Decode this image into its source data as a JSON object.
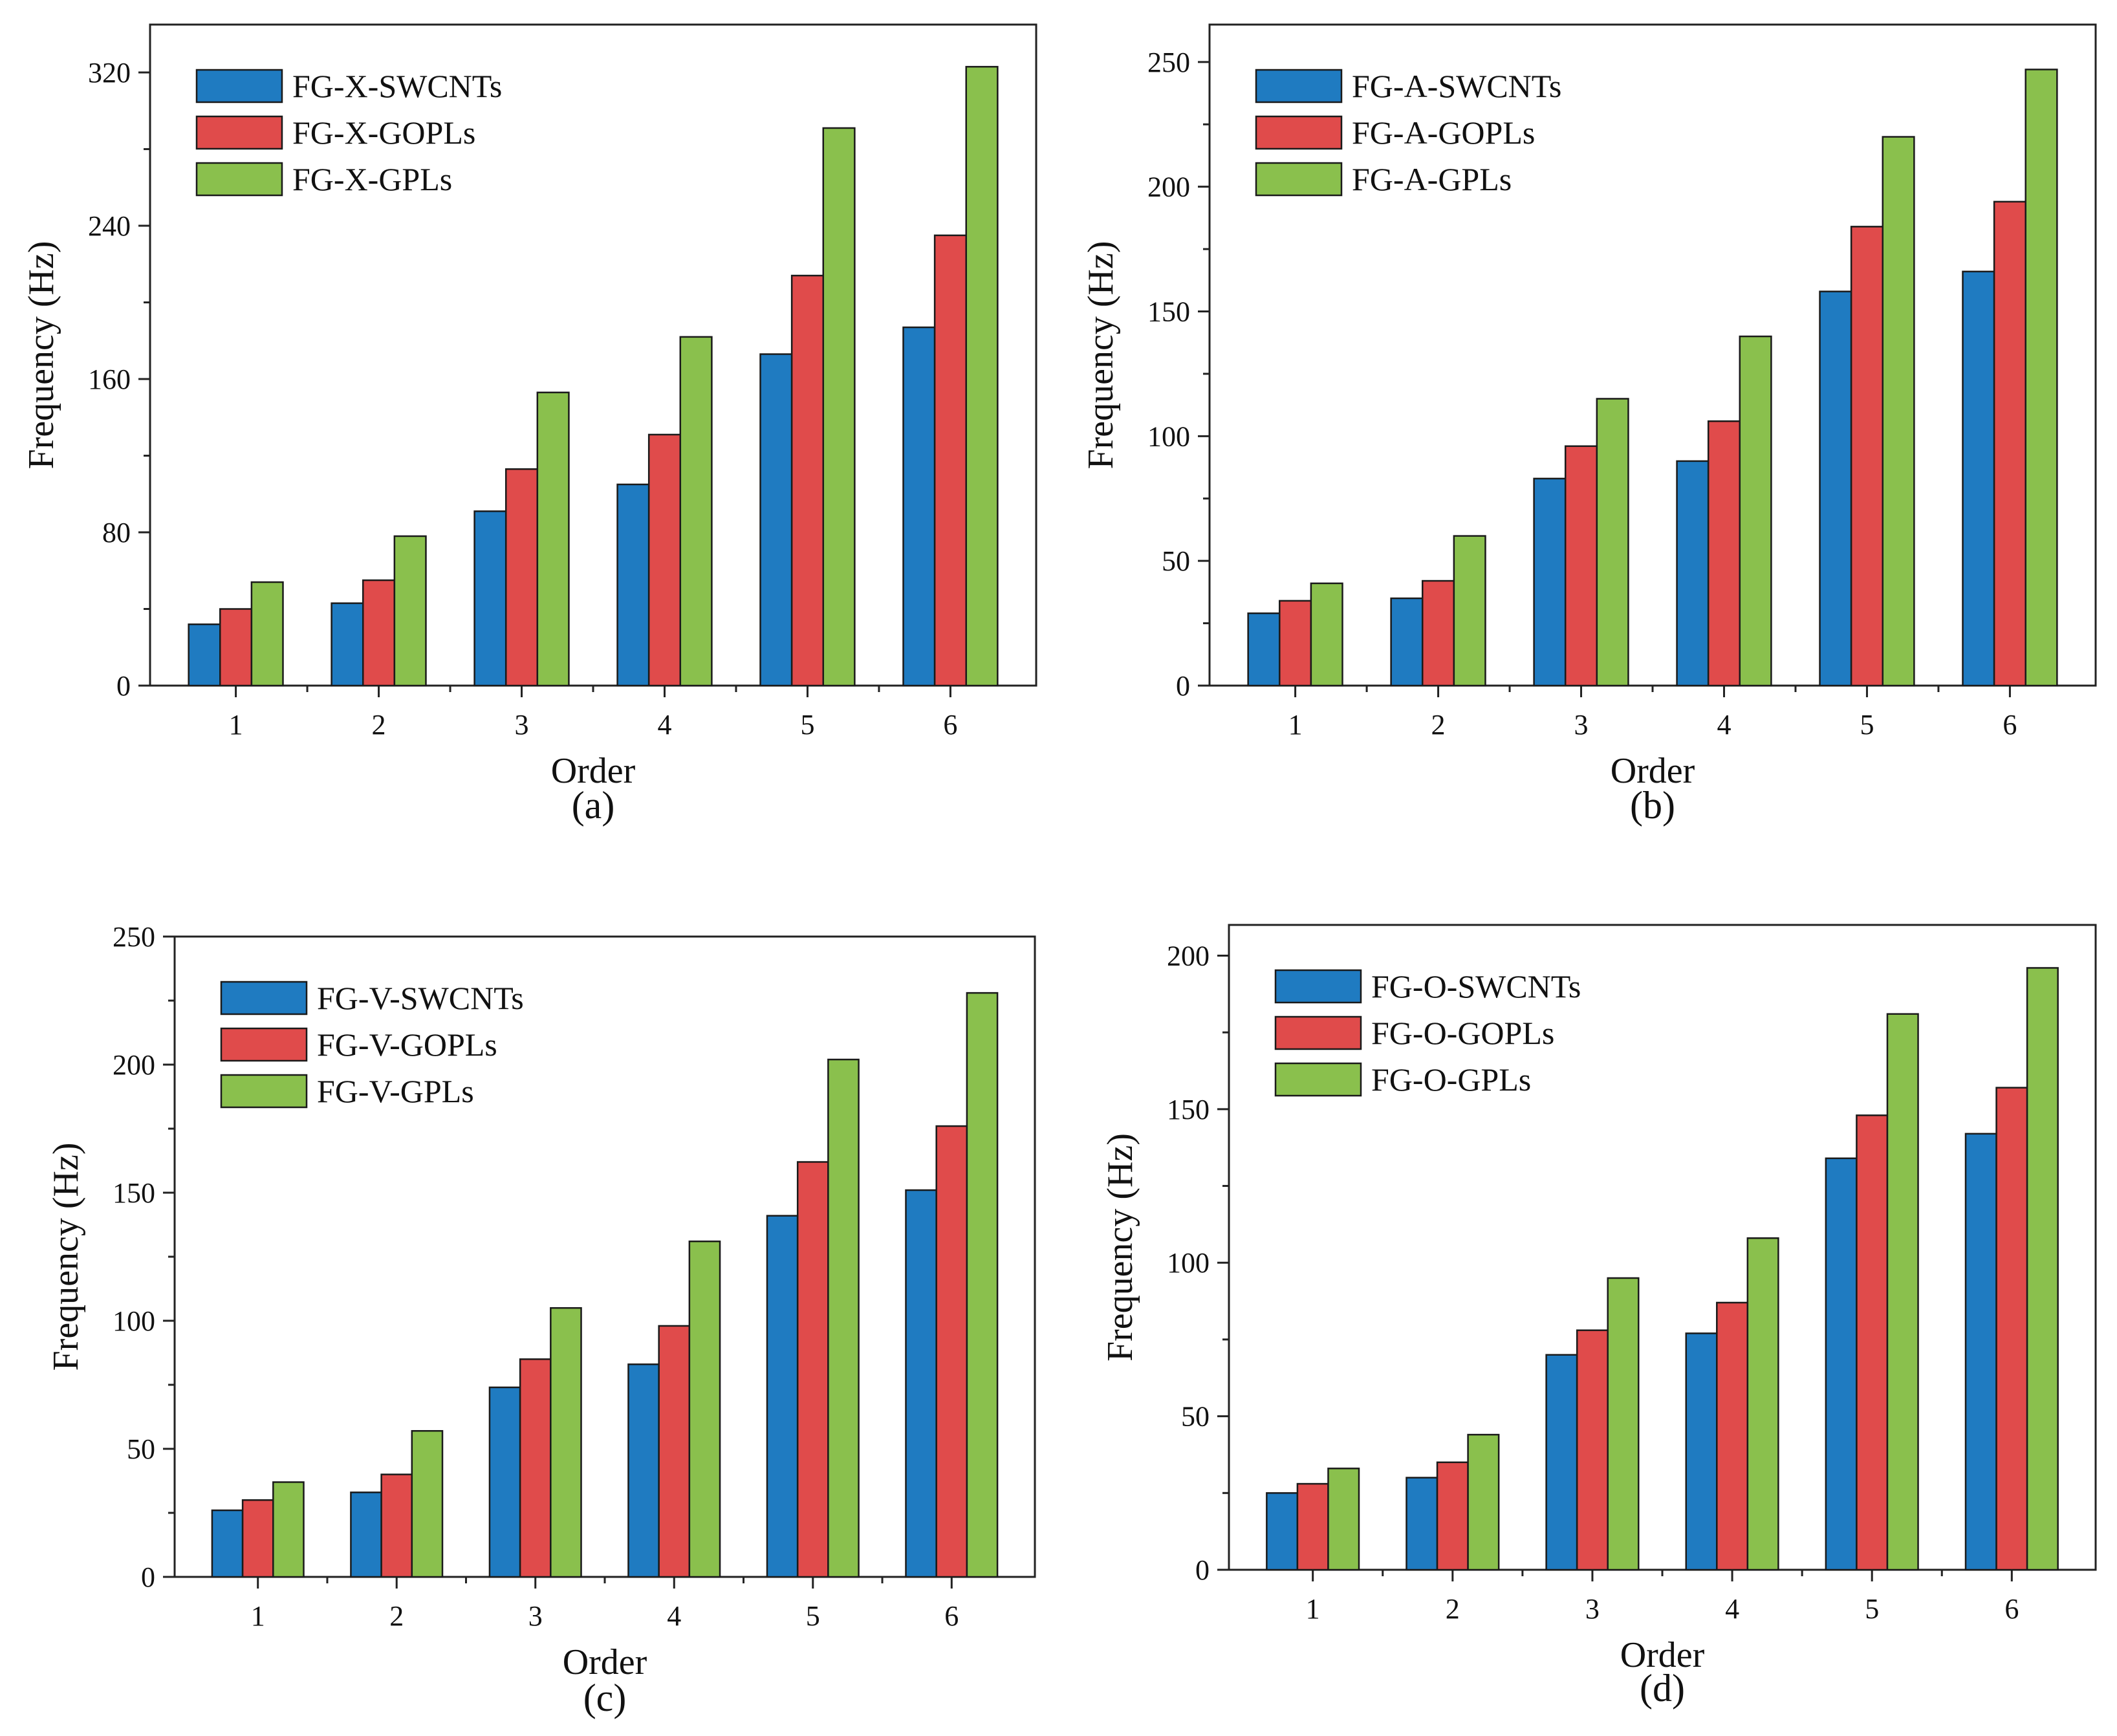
{
  "chart_data": [
    {
      "id": "a",
      "type": "bar",
      "panel_label": "(a)",
      "xlabel": "Order",
      "ylabel": "Frequency (Hz)",
      "categories": [
        "1",
        "2",
        "3",
        "4",
        "5",
        "6"
      ],
      "ylim": [
        0,
        345
      ],
      "yticks": [
        0,
        80,
        160,
        240,
        320
      ],
      "grid": false,
      "legend_position": "top-left",
      "series": [
        {
          "name": "FG-X-SWCNTs",
          "color": "#1f7bc1",
          "values": [
            32,
            43,
            91,
            105,
            173,
            187
          ]
        },
        {
          "name": "FG-X-GOPLs",
          "color": "#e04b4b",
          "values": [
            40,
            55,
            113,
            131,
            214,
            235
          ]
        },
        {
          "name": "FG-X-GPLs",
          "color": "#8ac04d",
          "values": [
            54,
            78,
            153,
            182,
            291,
            323
          ]
        }
      ]
    },
    {
      "id": "b",
      "type": "bar",
      "panel_label": "(b)",
      "xlabel": "Order",
      "ylabel": "Frequency (Hz)",
      "categories": [
        "1",
        "2",
        "3",
        "4",
        "5",
        "6"
      ],
      "ylim": [
        0,
        265
      ],
      "yticks": [
        0,
        50,
        100,
        150,
        200,
        250
      ],
      "grid": false,
      "legend_position": "top-left",
      "series": [
        {
          "name": "FG-A-SWCNTs",
          "color": "#1f7bc1",
          "values": [
            29,
            35,
            83,
            90,
            158,
            166
          ]
        },
        {
          "name": "FG-A-GOPLs",
          "color": "#e04b4b",
          "values": [
            34,
            42,
            96,
            106,
            184,
            194
          ]
        },
        {
          "name": "FG-A-GPLs",
          "color": "#8ac04d",
          "values": [
            41,
            60,
            115,
            140,
            220,
            247
          ]
        }
      ]
    },
    {
      "id": "c",
      "type": "bar",
      "panel_label": "(c)",
      "xlabel": "Order",
      "ylabel": "Frequency (Hz)",
      "categories": [
        "1",
        "2",
        "3",
        "4",
        "5",
        "6"
      ],
      "ylim": [
        0,
        250
      ],
      "yticks": [
        0,
        50,
        100,
        150,
        200,
        250
      ],
      "grid": false,
      "legend_position": "top-left",
      "series": [
        {
          "name": "FG-V-SWCNTs",
          "color": "#1f7bc1",
          "values": [
            26,
            33,
            74,
            83,
            141,
            151
          ]
        },
        {
          "name": "FG-V-GOPLs",
          "color": "#e04b4b",
          "values": [
            30,
            40,
            85,
            98,
            162,
            176
          ]
        },
        {
          "name": "FG-V-GPLs",
          "color": "#8ac04d",
          "values": [
            37,
            57,
            105,
            131,
            202,
            228
          ]
        }
      ]
    },
    {
      "id": "d",
      "type": "bar",
      "panel_label": "(d)",
      "xlabel": "Order",
      "ylabel": "Frequency (Hz)",
      "categories": [
        "1",
        "2",
        "3",
        "4",
        "5",
        "6"
      ],
      "ylim": [
        0,
        210
      ],
      "yticks": [
        0,
        50,
        100,
        150,
        200
      ],
      "grid": false,
      "legend_position": "top-left",
      "series": [
        {
          "name": "FG-O-SWCNTs",
          "color": "#1f7bc1",
          "values": [
            25,
            30,
            70,
            77,
            134,
            142
          ]
        },
        {
          "name": "FG-O-GOPLs",
          "color": "#e04b4b",
          "values": [
            28,
            35,
            78,
            87,
            148,
            157
          ]
        },
        {
          "name": "FG-O-GPLs",
          "color": "#8ac04d",
          "values": [
            33,
            44,
            95,
            108,
            181,
            196
          ]
        }
      ]
    }
  ]
}
